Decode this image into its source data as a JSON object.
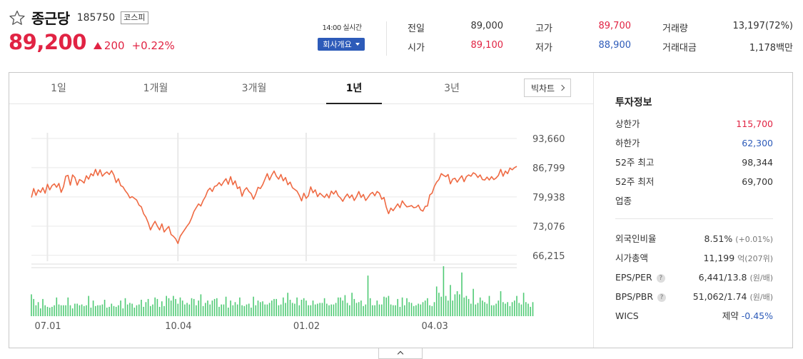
{
  "stock": {
    "name": "종근당",
    "code": "185750",
    "market": "코스피",
    "price": "89,200",
    "change": "200",
    "change_rate": "+0.22%",
    "direction": "up"
  },
  "realtime": {
    "label": "14:00 실시간",
    "company_button": "회사개요"
  },
  "quote": {
    "prev_close": {
      "label": "전일",
      "value": "89,000"
    },
    "open": {
      "label": "시가",
      "value": "89,100"
    },
    "high": {
      "label": "고가",
      "value": "89,700"
    },
    "low": {
      "label": "저가",
      "value": "88,900"
    },
    "volume": {
      "label": "거래량",
      "value": "13,197(72%)"
    },
    "trade_value": {
      "label": "거래대금",
      "value": "1,178백만"
    }
  },
  "tabs": [
    {
      "label": "1일"
    },
    {
      "label": "1개월"
    },
    {
      "label": "3개월"
    },
    {
      "label": "1년",
      "active": true
    },
    {
      "label": "3년"
    }
  ],
  "bigchart_label": "빅차트",
  "investment": {
    "title": "투자정보",
    "rows": [
      {
        "label": "상한가",
        "value": "115,700",
        "color": "#e12343"
      },
      {
        "label": "하한가",
        "value": "62,300",
        "color": "#2d5bb9"
      },
      {
        "label": "52주 최고",
        "value": "98,344"
      },
      {
        "label": "52주 최저",
        "value": "69,700"
      },
      {
        "label": "업종",
        "value": ""
      }
    ],
    "foreign_ratio": {
      "label": "외국인비율",
      "value": "8.51%",
      "sub": "(+0.01%)"
    },
    "market_cap": {
      "label": "시가총액",
      "value": "11,199",
      "unit": "억",
      "sub": "(207위)"
    },
    "eps_per": {
      "label": "EPS/PER",
      "value": "6,441/13.8",
      "sub": "(원/배)"
    },
    "bps_pbr": {
      "label": "BPS/PBR",
      "value": "51,062/1.74",
      "sub": "(원/배)"
    },
    "wics": {
      "label": "WICS",
      "value": "제약",
      "rate": "-0.45%"
    },
    "help_glyph": "?"
  },
  "colors": {
    "up": "#e12343",
    "down": "#2d5bb9",
    "line": "#ef6a43",
    "volume": "#4fca74",
    "accent_button": "#2d5bb9"
  },
  "icons": {
    "favorite": "star-outline-icon",
    "bigchart_arrow": "chevron-right-icon",
    "toggle": "chevron-up-icon"
  },
  "chart_data": {
    "type": "line",
    "period": "1년",
    "y_ticks": [
      "93,660",
      "86,799",
      "79,938",
      "73,076",
      "66,215"
    ],
    "y_values": [
      93660,
      86799,
      79938,
      73076,
      66215
    ],
    "ylim": [
      64500,
      95000
    ],
    "x_ticks": [
      "07.01",
      "10.04",
      "01.02",
      "04.03"
    ],
    "x_tick_index": [
      7,
      64,
      120,
      176
    ],
    "grid": true,
    "series": [
      {
        "values": [
          79800,
          81900,
          80300,
          81600,
          81000,
          82100,
          80800,
          82900,
          81600,
          82600,
          83000,
          82200,
          83100,
          81000,
          82300,
          84800,
          85000,
          82700,
          85100,
          84500,
          82700,
          84000,
          83700,
          83200,
          84900,
          84100,
          85400,
          84900,
          86400,
          85000,
          86300,
          84800,
          85400,
          85800,
          85200,
          86100,
          85100,
          83300,
          84200,
          82600,
          82300,
          81400,
          80700,
          79700,
          80000,
          79600,
          79200,
          78000,
          77600,
          76000,
          75200,
          73900,
          72200,
          73300,
          74200,
          73100,
          72200,
          73600,
          71700,
          72400,
          73000,
          71100,
          70700,
          70100,
          69000,
          70700,
          71500,
          72300,
          73100,
          73800,
          75000,
          76500,
          77400,
          78300,
          77800,
          79100,
          80000,
          81400,
          82000,
          81200,
          82400,
          82600,
          83300,
          82600,
          83500,
          84200,
          82900,
          84700,
          82800,
          83700,
          81900,
          82300,
          80100,
          81500,
          82100,
          81200,
          80700,
          79400,
          80600,
          82200,
          81900,
          82800,
          84100,
          85400,
          83900,
          85100,
          86000,
          84800,
          84100,
          85200,
          83700,
          84500,
          82800,
          83400,
          82100,
          81700,
          81300,
          80300,
          79000,
          80800,
          79600,
          80200,
          82300,
          80900,
          81600,
          80000,
          80800,
          80300,
          79800,
          80600,
          79700,
          81300,
          80600,
          81400,
          80200,
          79700,
          78900,
          79900,
          80600,
          79700,
          80400,
          79100,
          80000,
          81200,
          79800,
          80500,
          79100,
          79800,
          80600,
          81000,
          80200,
          81200,
          80800,
          79400,
          79800,
          77500,
          76000,
          77300,
          76700,
          77500,
          78300,
          77400,
          79000,
          78200,
          77600,
          77700,
          77900,
          77400,
          77500,
          78000,
          76900,
          76600,
          77700,
          77800,
          80400,
          80800,
          82400,
          83400,
          84000,
          85400,
          85000,
          84700,
          85200,
          83000,
          84100,
          84300,
          83400,
          84200,
          84900,
          83500,
          84700,
          85100,
          84800,
          85600,
          85300,
          84500,
          85100,
          84000,
          83900,
          84600,
          83900,
          84700,
          84000,
          84400,
          85000,
          86400,
          84800,
          86000,
          85400,
          86700,
          86300,
          86800,
          87100
        ]
      }
    ],
    "volume_series": [
      {
        "values": [
          28,
          22,
          14,
          18,
          10,
          22,
          14,
          12,
          11,
          12,
          14,
          24,
          15,
          14,
          14,
          14,
          24,
          14,
          10,
          16,
          16,
          14,
          15,
          13,
          14,
          26,
          11,
          20,
          13,
          14,
          14,
          15,
          21,
          11,
          12,
          16,
          13,
          12,
          14,
          20,
          10,
          23,
          15,
          17,
          16,
          11,
          14,
          15,
          21,
          12,
          18,
          22,
          13,
          15,
          24,
          22,
          12,
          19,
          13,
          26,
          23,
          20,
          26,
          22,
          16,
          24,
          20,
          15,
          17,
          15,
          23,
          22,
          14,
          20,
          28,
          13,
          17,
          20,
          15,
          20,
          22,
          23,
          12,
          15,
          15,
          25,
          11,
          20,
          14,
          18,
          15,
          24,
          14,
          13,
          15,
          16,
          11,
          25,
          14,
          20,
          18,
          19,
          15,
          15,
          17,
          20,
          22,
          22,
          14,
          15,
          24,
          17,
          30,
          21,
          17,
          16,
          24,
          14,
          21,
          23,
          20,
          14,
          14,
          20,
          15,
          16,
          17,
          17,
          23,
          16,
          14,
          15,
          15,
          17,
          24,
          24,
          20,
          27,
          17,
          14,
          30,
          22,
          17,
          18,
          20,
          13,
          15,
          52,
          23,
          14,
          14,
          20,
          15,
          15,
          25,
          24,
          26,
          15,
          14,
          14,
          22,
          12,
          24,
          14,
          23,
          18,
          17,
          13,
          14,
          16,
          15,
          18,
          20,
          23,
          14,
          13,
          18,
          38,
          30,
          25,
          64,
          26,
          20,
          40,
          20,
          28,
          32,
          28,
          56,
          24,
          26,
          22,
          16,
          35,
          15,
          17,
          24,
          20,
          18,
          16,
          26,
          14,
          14,
          16,
          20,
          32,
          18,
          16,
          18,
          13,
          18,
          20,
          26,
          17,
          15,
          30,
          18,
          16,
          12,
          18
        ]
      }
    ]
  }
}
